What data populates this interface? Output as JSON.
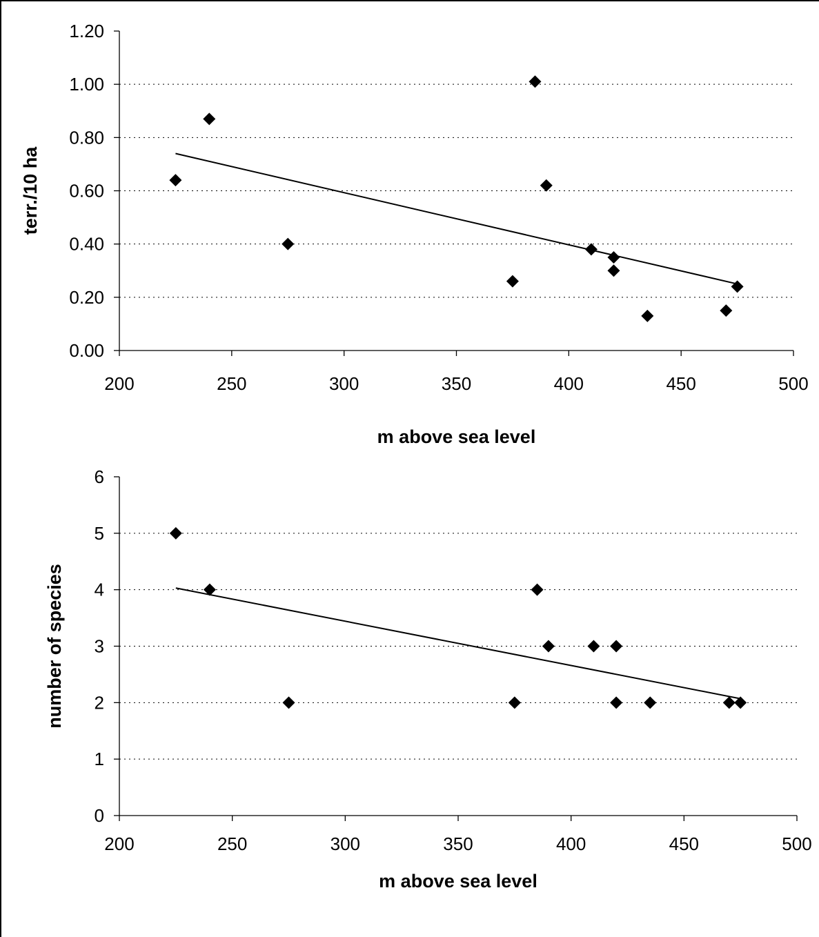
{
  "chart_data": [
    {
      "type": "scatter",
      "title": "",
      "xlabel": "m above sea level",
      "ylabel": "terr./10 ha",
      "xlim": [
        200,
        500
      ],
      "ylim": [
        0,
        1.2
      ],
      "x_ticks": [
        "200",
        "250",
        "300",
        "350",
        "400",
        "450",
        "500"
      ],
      "y_ticks": [
        "0.00",
        "0.20",
        "0.40",
        "0.60",
        "0.80",
        "1.00",
        "1.20"
      ],
      "grid": "horizontal dotted",
      "marker": "diamond",
      "marker_color": "#000000",
      "series": [
        {
          "points": [
            {
              "x": 225,
              "y": 0.64
            },
            {
              "x": 240,
              "y": 0.87
            },
            {
              "x": 275,
              "y": 0.4
            },
            {
              "x": 375,
              "y": 0.26
            },
            {
              "x": 385,
              "y": 1.01
            },
            {
              "x": 390,
              "y": 0.62
            },
            {
              "x": 410,
              "y": 0.38
            },
            {
              "x": 420,
              "y": 0.35
            },
            {
              "x": 420,
              "y": 0.3
            },
            {
              "x": 435,
              "y": 0.13
            },
            {
              "x": 470,
              "y": 0.15
            },
            {
              "x": 475,
              "y": 0.24
            }
          ]
        }
      ],
      "trendline": {
        "x": [
          225,
          475
        ],
        "y": [
          0.74,
          0.25
        ]
      }
    },
    {
      "type": "scatter",
      "title": "",
      "xlabel": "m above sea level",
      "ylabel": "number of species",
      "xlim": [
        200,
        500
      ],
      "ylim": [
        0,
        6
      ],
      "x_ticks": [
        "200",
        "250",
        "300",
        "350",
        "400",
        "450",
        "500"
      ],
      "y_ticks": [
        "0",
        "1",
        "2",
        "3",
        "4",
        "5",
        "6"
      ],
      "grid": "horizontal dotted",
      "marker": "diamond",
      "marker_color": "#000000",
      "series": [
        {
          "points": [
            {
              "x": 225,
              "y": 5
            },
            {
              "x": 240,
              "y": 4
            },
            {
              "x": 275,
              "y": 2
            },
            {
              "x": 375,
              "y": 2
            },
            {
              "x": 385,
              "y": 4
            },
            {
              "x": 390,
              "y": 3
            },
            {
              "x": 410,
              "y": 3
            },
            {
              "x": 420,
              "y": 3
            },
            {
              "x": 420,
              "y": 2
            },
            {
              "x": 435,
              "y": 2
            },
            {
              "x": 470,
              "y": 2
            },
            {
              "x": 475,
              "y": 2
            }
          ]
        }
      ],
      "trendline": {
        "x": [
          225,
          475
        ],
        "y": [
          4.03,
          2.07
        ]
      }
    }
  ]
}
